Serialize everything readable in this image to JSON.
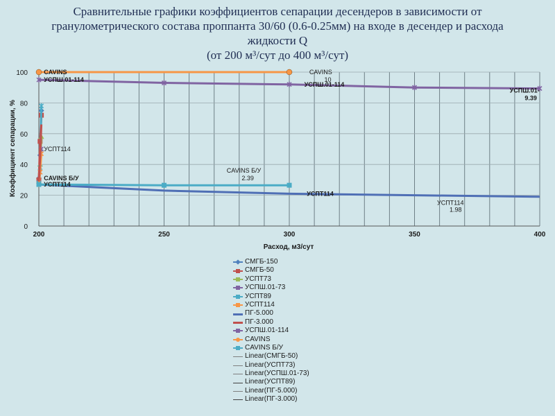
{
  "title": {
    "line1": "Сравнительные графики коэффициентов сепарации десендеров  в зависимости от",
    "line2": "гранулометрического  состава проппанта 30/60 (0.6-0.25мм)  на входе в десендер и расхода",
    "line3": "жидкости Q",
    "line4": "(от 200 м³/сут до 400 м³/сут)"
  },
  "chart_data": {
    "type": "line",
    "xlabel": "Расход, м3/сут",
    "ylabel": "Коэффициент сепарации, %",
    "xlim": [
      200,
      400
    ],
    "ylim": [
      0,
      100
    ],
    "x_ticks": [
      "200",
      "250",
      "300",
      "350",
      "400"
    ],
    "y_ticks": [
      "0",
      "20",
      "40",
      "60",
      "80",
      "100"
    ],
    "grid": true,
    "legend_position": "bottom",
    "series": [
      {
        "name": "СМГБ-150",
        "color": "#4f81bd",
        "marker": "diamond",
        "points": [
          [
            200,
            31
          ],
          [
            200.5,
            46
          ],
          [
            201,
            75
          ]
        ]
      },
      {
        "name": "СМГБ-50",
        "color": "#c0504d",
        "marker": "square",
        "points": [
          [
            200,
            30
          ],
          [
            200.5,
            55
          ],
          [
            201,
            72
          ]
        ]
      },
      {
        "name": "УСПТ73",
        "color": "#9bbb59",
        "marker": "triangle",
        "points": [
          [
            200,
            29
          ],
          [
            200.5,
            40
          ],
          [
            201,
            58
          ]
        ]
      },
      {
        "name": "УСПШ.01-73",
        "color": "#8064a2",
        "marker": "x",
        "points": [
          [
            200,
            28
          ],
          [
            200.5,
            35
          ],
          [
            201,
            50
          ]
        ]
      },
      {
        "name": "УСПТ89",
        "color": "#4bacc6",
        "marker": "star",
        "points": [
          [
            200,
            28
          ],
          [
            200.5,
            38
          ],
          [
            201,
            78
          ]
        ]
      },
      {
        "name": "УСПТ114",
        "color": "#f79646",
        "marker": "plus",
        "points": [
          [
            200,
            27
          ],
          [
            200.5,
            35
          ],
          [
            201,
            47
          ]
        ]
      },
      {
        "name": "ПГ-5.000",
        "color": "#4f6fb5",
        "marker": "dash",
        "points": [
          [
            200,
            27
          ],
          [
            250,
            23
          ],
          [
            300,
            21
          ],
          [
            350,
            20
          ],
          [
            400,
            19
          ]
        ]
      },
      {
        "name": "ПГ-3.000",
        "color": "#c0504d",
        "marker": "dash",
        "points": [
          [
            200,
            29
          ],
          [
            200.5,
            45
          ],
          [
            201,
            66
          ]
        ]
      },
      {
        "name": "УСПШ.01-114",
        "color": "#8064a2",
        "marker": "plus",
        "points": [
          [
            200,
            95
          ],
          [
            250,
            93
          ],
          [
            300,
            92
          ],
          [
            350,
            90
          ],
          [
            400,
            89.39
          ]
        ]
      },
      {
        "name": "CAVINS",
        "color": "#f79646",
        "marker": "circle",
        "points": [
          [
            200,
            100
          ],
          [
            300,
            100
          ]
        ]
      },
      {
        "name": "CAVINS Б/У",
        "color": "#4bacc6",
        "marker": "square",
        "points": [
          [
            200,
            27
          ],
          [
            250,
            26.5
          ],
          [
            300,
            26.5
          ]
        ]
      },
      {
        "name": "Linear(СМГБ-50)",
        "color": "#7f7f7f",
        "marker": "none",
        "points": []
      },
      {
        "name": "Linear(УСПТ73)",
        "color": "#7f7f7f",
        "marker": "none",
        "points": []
      },
      {
        "name": "Linear(УСПШ.01-73)",
        "color": "#7f7f7f",
        "marker": "none",
        "points": []
      },
      {
        "name": "Linear(УСПТ89)",
        "color": "#404040",
        "marker": "none",
        "points": []
      },
      {
        "name": "Linear(ПГ-5.000)",
        "color": "#7f7f7f",
        "marker": "none",
        "points": []
      },
      {
        "name": "Linear(ПГ-3.000)",
        "color": "#404040",
        "marker": "none",
        "points": []
      }
    ],
    "annotations": [
      {
        "text": "CAVINS",
        "x": 202,
        "y": 100,
        "bold": true
      },
      {
        "text": "УСПШ.01-114",
        "x": 202,
        "y": 95,
        "bold": true
      },
      {
        "text": "CAVINS",
        "x": 308,
        "y": 100,
        "bold": false
      },
      {
        "text": "10",
        "x": 314,
        "y": 95,
        "bold": false
      },
      {
        "text": "УСПШ.01-114",
        "x": 306,
        "y": 92,
        "bold": true
      },
      {
        "text": "УСПШ.01-",
        "x": 388,
        "y": 88,
        "bold": true
      },
      {
        "text": "9.39",
        "x": 394,
        "y": 83,
        "bold": true
      },
      {
        "text": "УСПТ114",
        "x": 202,
        "y": 50,
        "bold": false
      },
      {
        "text": "CAVINS Б/У",
        "x": 275,
        "y": 36,
        "bold": false
      },
      {
        "text": "2.39",
        "x": 281,
        "y": 31,
        "bold": false
      },
      {
        "text": "CAVINS Б/У",
        "x": 202,
        "y": 31,
        "bold": true
      },
      {
        "text": "УСПТ114",
        "x": 202,
        "y": 27,
        "bold": true
      },
      {
        "text": "УСПТ114",
        "x": 307,
        "y": 21,
        "bold": true
      },
      {
        "text": "УСПТ114",
        "x": 359,
        "y": 15,
        "bold": false
      },
      {
        "text": "1.98",
        "x": 364,
        "y": 10.5,
        "bold": false
      }
    ]
  }
}
